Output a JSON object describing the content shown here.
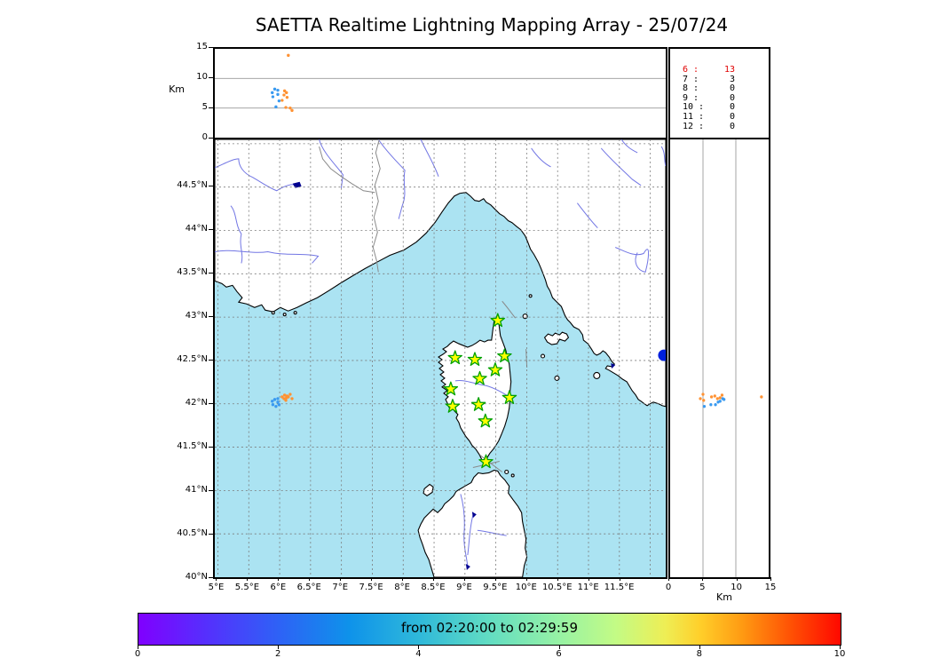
{
  "title": "SAETTA Realtime Lightning Mapping Array - 25/07/24",
  "colors": {
    "sea": "#abe3f2",
    "land": "#ffffff",
    "coast": "#000000",
    "river": "#7276e4",
    "border_line": "#8a8a8a",
    "grid": "#7a7a7a",
    "panel_grid": "#999999",
    "star_fill": "#ffff00",
    "star_stroke": "#00a000",
    "source_blue": "#3a9af0",
    "source_orange": "#ff9233",
    "marker_blue": "#0020dd",
    "lake": "#000090",
    "highlight_red": "#e00000"
  },
  "alt_panel": {
    "ylabel": "Km",
    "range": [
      0,
      15
    ],
    "grid": [
      5,
      10
    ],
    "tick_labels": [
      {
        "v": 15,
        "label": "15"
      },
      {
        "v": 10,
        "label": "10"
      },
      {
        "v": 5,
        "label": "5"
      },
      {
        "v": 0,
        "label": "0"
      }
    ]
  },
  "histogram": {
    "rows": [
      {
        "stations": "6",
        "count": "13",
        "highlight": true
      },
      {
        "stations": "7",
        "count": "3",
        "highlight": false
      },
      {
        "stations": "8",
        "count": "0",
        "highlight": false
      },
      {
        "stations": "9",
        "count": "0",
        "highlight": false
      },
      {
        "stations": "10",
        "count": "0",
        "highlight": false
      },
      {
        "stations": "11",
        "count": "0",
        "highlight": false
      },
      {
        "stations": "12",
        "count": "0",
        "highlight": false
      }
    ]
  },
  "map": {
    "lon_grid": [
      5,
      5.5,
      6,
      6.5,
      7,
      7.5,
      8,
      8.5,
      9,
      9.5,
      10,
      10.5,
      11,
      11.5,
      12
    ],
    "lat_grid": [
      40.5,
      41,
      41.5,
      42,
      42.5,
      43,
      43.5,
      44,
      44.5,
      45
    ],
    "lon_ticks": [
      {
        "v": 5,
        "label": "5°E"
      },
      {
        "v": 5.5,
        "label": "5.5°E"
      },
      {
        "v": 6,
        "label": "6°E"
      },
      {
        "v": 6.5,
        "label": "6.5°E"
      },
      {
        "v": 7,
        "label": "7°E"
      },
      {
        "v": 7.5,
        "label": "7.5°E"
      },
      {
        "v": 8,
        "label": "8°E"
      },
      {
        "v": 8.5,
        "label": "8.5°E"
      },
      {
        "v": 9,
        "label": "9°E"
      },
      {
        "v": 9.5,
        "label": "9.5°E"
      },
      {
        "v": 10,
        "label": "10°E"
      },
      {
        "v": 10.5,
        "label": "10.5°E"
      },
      {
        "v": 11,
        "label": "11°E"
      },
      {
        "v": 11.5,
        "label": "11.5°E"
      }
    ],
    "lat_ticks": [
      {
        "v": 44.5,
        "label": "44.5°N"
      },
      {
        "v": 44,
        "label": "44°N"
      },
      {
        "v": 43.5,
        "label": "43.5°N"
      },
      {
        "v": 43,
        "label": "43°N"
      },
      {
        "v": 42.5,
        "label": "42.5°N"
      },
      {
        "v": 42,
        "label": "42°N"
      },
      {
        "v": 41.5,
        "label": "41.5°N"
      },
      {
        "v": 41,
        "label": "41°N"
      },
      {
        "v": 40.5,
        "label": "40.5°N"
      },
      {
        "v": 40,
        "label": "40°N"
      }
    ]
  },
  "right_panel": {
    "xlabel": "Km",
    "range": [
      0,
      15
    ],
    "grid": [
      5,
      10
    ],
    "tick_labels": [
      {
        "v": 0,
        "label": "0"
      },
      {
        "v": 5,
        "label": "5"
      },
      {
        "v": 10,
        "label": "10"
      },
      {
        "v": 15,
        "label": "15"
      }
    ]
  },
  "colorbar": {
    "label": "from 02:20:00 to 02:29:59",
    "tick_labels": [
      {
        "p": 0,
        "label": "0"
      },
      {
        "p": 20,
        "label": "2"
      },
      {
        "p": 40,
        "label": "4"
      },
      {
        "p": 60,
        "label": "6"
      },
      {
        "p": 80,
        "label": "8"
      },
      {
        "p": 100,
        "label": "10"
      }
    ],
    "stops": [
      {
        "p": 0,
        "c": "#8000ff"
      },
      {
        "p": 10,
        "c": "#5431fd"
      },
      {
        "p": 20,
        "c": "#2e62f6"
      },
      {
        "p": 30,
        "c": "#0e92ea"
      },
      {
        "p": 40,
        "c": "#2fb9da"
      },
      {
        "p": 50,
        "c": "#62ddc2"
      },
      {
        "p": 60,
        "c": "#97f2a4"
      },
      {
        "p": 68,
        "c": "#c3fb85"
      },
      {
        "p": 75,
        "c": "#eeee55"
      },
      {
        "p": 80,
        "c": "#ffcf2a"
      },
      {
        "p": 86,
        "c": "#ff9a12"
      },
      {
        "p": 93,
        "c": "#ff5004"
      },
      {
        "p": 100,
        "c": "#ff0800"
      }
    ]
  },
  "chart_data": {
    "type": "scatter",
    "title": "SAETTA Realtime Lightning Mapping Array - 25/07/24",
    "time_window": {
      "from": "02:20:00",
      "to": "02:29:59",
      "colorbar_range": [
        0,
        10
      ],
      "colorbar_unit": "minutes"
    },
    "map_extent": {
      "lon": [
        4.95,
        12.25
      ],
      "lat": [
        40.0,
        45.05
      ]
    },
    "alt_axis": {
      "label": "Km",
      "range": [
        0,
        15
      ],
      "ticks": [
        0,
        5,
        10,
        15
      ]
    },
    "station_count_histogram": [
      {
        "stations": 6,
        "count": 13
      },
      {
        "stations": 7,
        "count": 3
      },
      {
        "stations": 8,
        "count": 0
      },
      {
        "stations": 9,
        "count": 0
      },
      {
        "stations": 10,
        "count": 0
      },
      {
        "stations": 11,
        "count": 0
      },
      {
        "stations": 12,
        "count": 0
      }
    ],
    "stations": [
      {
        "lon": 9.53,
        "lat": 42.96
      },
      {
        "lon": 8.84,
        "lat": 42.53
      },
      {
        "lon": 9.16,
        "lat": 42.51
      },
      {
        "lon": 9.64,
        "lat": 42.55
      },
      {
        "lon": 9.49,
        "lat": 42.39
      },
      {
        "lon": 9.24,
        "lat": 42.29
      },
      {
        "lon": 8.77,
        "lat": 42.17
      },
      {
        "lon": 9.72,
        "lat": 42.07
      },
      {
        "lon": 9.22,
        "lat": 41.99
      },
      {
        "lon": 8.8,
        "lat": 41.97
      },
      {
        "lon": 9.33,
        "lat": 41.8
      },
      {
        "lon": 9.34,
        "lat": 41.33
      }
    ],
    "sources": [
      {
        "lon": 6.14,
        "lat": 42.08,
        "alt_km": 13.9,
        "group": "orange"
      },
      {
        "lon": 5.92,
        "lat": 42.05,
        "alt_km": 8.2,
        "group": "blue"
      },
      {
        "lon": 5.97,
        "lat": 42.06,
        "alt_km": 8.0,
        "group": "blue"
      },
      {
        "lon": 5.88,
        "lat": 42.03,
        "alt_km": 7.6,
        "group": "blue"
      },
      {
        "lon": 5.97,
        "lat": 42.02,
        "alt_km": 7.3,
        "group": "blue"
      },
      {
        "lon": 5.89,
        "lat": 41.99,
        "alt_km": 6.9,
        "group": "blue"
      },
      {
        "lon": 5.99,
        "lat": 41.99,
        "alt_km": 6.2,
        "group": "blue"
      },
      {
        "lon": 5.94,
        "lat": 41.97,
        "alt_km": 5.2,
        "group": "blue"
      },
      {
        "lon": 6.08,
        "lat": 42.1,
        "alt_km": 7.9,
        "group": "orange"
      },
      {
        "lon": 6.11,
        "lat": 42.07,
        "alt_km": 7.6,
        "group": "orange"
      },
      {
        "lon": 6.07,
        "lat": 42.06,
        "alt_km": 7.2,
        "group": "orange"
      },
      {
        "lon": 6.12,
        "lat": 42.09,
        "alt_km": 6.8,
        "group": "orange"
      },
      {
        "lon": 6.04,
        "lat": 42.08,
        "alt_km": 6.3,
        "group": "orange"
      },
      {
        "lon": 6.1,
        "lat": 42.04,
        "alt_km": 5.1,
        "group": "orange"
      },
      {
        "lon": 6.17,
        "lat": 42.11,
        "alt_km": 5.0,
        "group": "orange"
      },
      {
        "lon": 6.2,
        "lat": 42.06,
        "alt_km": 4.6,
        "group": "orange"
      }
    ],
    "marker": {
      "lon": 12.22,
      "lat": 42.56
    }
  }
}
